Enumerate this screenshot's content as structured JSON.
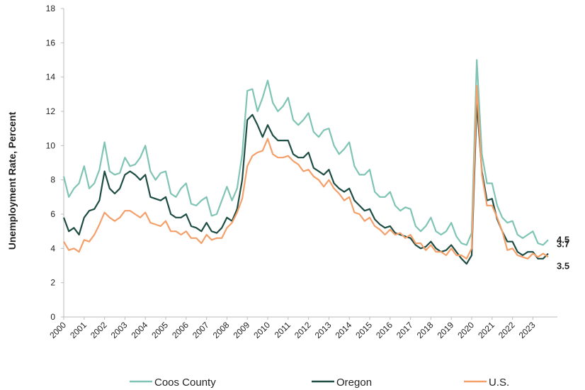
{
  "chart_data": {
    "type": "line",
    "ylabel": "Unemployment Rate, Percent",
    "x": [
      2000,
      2000.25,
      2000.5,
      2000.75,
      2001,
      2001.25,
      2001.5,
      2001.75,
      2002,
      2002.25,
      2002.5,
      2002.75,
      2003,
      2003.25,
      2003.5,
      2003.75,
      2004,
      2004.25,
      2004.5,
      2004.75,
      2005,
      2005.25,
      2005.5,
      2005.75,
      2006,
      2006.25,
      2006.5,
      2006.75,
      2007,
      2007.25,
      2007.5,
      2007.75,
      2008,
      2008.25,
      2008.5,
      2008.75,
      2009,
      2009.25,
      2009.5,
      2009.75,
      2010,
      2010.25,
      2010.5,
      2010.75,
      2011,
      2011.25,
      2011.5,
      2011.75,
      2012,
      2012.25,
      2012.5,
      2012.75,
      2013,
      2013.25,
      2013.5,
      2013.75,
      2014,
      2014.25,
      2014.5,
      2014.75,
      2015,
      2015.25,
      2015.5,
      2015.75,
      2016,
      2016.25,
      2016.5,
      2016.75,
      2017,
      2017.25,
      2017.5,
      2017.75,
      2018,
      2018.25,
      2018.5,
      2018.75,
      2019,
      2019.25,
      2019.5,
      2019.75,
      2020,
      2020.25,
      2020.5,
      2020.75,
      2021,
      2021.25,
      2021.5,
      2021.75,
      2022,
      2022.25,
      2022.5,
      2022.75,
      2023,
      2023.25,
      2023.5,
      2023.75
    ],
    "series": [
      {
        "name": "Coos County",
        "color": "#7fc4b4",
        "values": [
          8.2,
          7.0,
          7.5,
          7.8,
          8.8,
          7.5,
          7.8,
          8.6,
          10.2,
          8.5,
          8.3,
          8.4,
          9.3,
          8.8,
          8.9,
          9.3,
          10.0,
          8.5,
          8.0,
          8.4,
          8.5,
          7.2,
          7.0,
          7.5,
          7.8,
          6.6,
          6.5,
          6.8,
          7.0,
          5.9,
          6.0,
          6.8,
          7.6,
          6.8,
          7.5,
          9.5,
          13.2,
          13.3,
          12.0,
          12.8,
          13.8,
          12.5,
          12.0,
          12.3,
          12.8,
          11.5,
          11.2,
          11.5,
          11.9,
          10.8,
          10.5,
          10.9,
          11.0,
          10.0,
          9.5,
          9.8,
          10.2,
          8.8,
          8.3,
          8.3,
          8.6,
          7.3,
          7.0,
          7.0,
          7.3,
          6.5,
          6.2,
          6.4,
          6.3,
          5.3,
          5.0,
          5.3,
          5.8,
          5.0,
          4.8,
          5.0,
          5.5,
          4.7,
          4.3,
          4.2,
          4.9,
          15.0,
          9.5,
          7.8,
          7.8,
          6.5,
          5.8,
          5.5,
          5.6,
          4.8,
          4.6,
          4.8,
          5.0,
          4.3,
          4.2,
          4.5
        ]
      },
      {
        "name": "Oregon",
        "color": "#1e4d44",
        "values": [
          5.8,
          5.0,
          5.2,
          4.8,
          5.8,
          6.2,
          6.3,
          6.8,
          8.5,
          7.5,
          7.2,
          7.5,
          8.3,
          8.5,
          8.3,
          8.0,
          8.3,
          7.0,
          6.9,
          6.8,
          7.0,
          6.0,
          5.8,
          5.8,
          6.0,
          5.3,
          5.2,
          5.0,
          5.5,
          5.0,
          4.9,
          5.2,
          5.8,
          5.6,
          6.3,
          8.0,
          11.5,
          11.8,
          11.2,
          10.5,
          11.2,
          10.6,
          10.3,
          10.3,
          10.3,
          9.5,
          9.3,
          9.3,
          9.6,
          8.7,
          8.5,
          8.3,
          8.6,
          7.8,
          7.5,
          7.3,
          7.5,
          6.8,
          6.5,
          6.2,
          6.3,
          5.7,
          5.4,
          5.2,
          5.3,
          4.9,
          4.8,
          4.7,
          4.6,
          4.2,
          4.0,
          4.1,
          4.4,
          4.0,
          3.8,
          3.9,
          4.2,
          3.8,
          3.4,
          3.1,
          3.6,
          12.5,
          8.5,
          6.8,
          6.9,
          5.7,
          5.0,
          4.4,
          4.4,
          3.8,
          3.6,
          3.8,
          3.8,
          3.4,
          3.4,
          3.7
        ]
      },
      {
        "name": "U.S.",
        "color": "#f4a06b",
        "values": [
          4.4,
          3.9,
          4.0,
          3.8,
          4.5,
          4.4,
          4.8,
          5.4,
          6.1,
          5.8,
          5.6,
          5.8,
          6.2,
          6.2,
          6.0,
          5.8,
          6.1,
          5.5,
          5.4,
          5.3,
          5.6,
          5.0,
          5.0,
          4.8,
          5.0,
          4.6,
          4.6,
          4.3,
          4.8,
          4.5,
          4.6,
          4.6,
          5.2,
          5.5,
          6.1,
          6.9,
          8.8,
          9.4,
          9.6,
          9.7,
          10.4,
          9.5,
          9.3,
          9.3,
          9.4,
          9.1,
          8.9,
          8.5,
          8.6,
          8.2,
          8.0,
          7.6,
          8.0,
          7.5,
          7.2,
          6.8,
          7.0,
          6.1,
          6.0,
          5.6,
          5.8,
          5.3,
          5.1,
          4.8,
          5.1,
          4.8,
          4.9,
          4.6,
          4.8,
          4.3,
          4.3,
          3.9,
          4.2,
          3.8,
          3.8,
          3.6,
          4.0,
          3.6,
          3.6,
          3.4,
          4.0,
          13.5,
          8.3,
          6.5,
          6.5,
          5.8,
          5.0,
          3.9,
          4.0,
          3.6,
          3.5,
          3.4,
          3.7,
          3.5,
          3.7,
          3.5
        ]
      }
    ],
    "xlim": [
      2000,
      2024.2
    ],
    "xticks": [
      2000,
      2001,
      2002,
      2003,
      2004,
      2005,
      2006,
      2007,
      2008,
      2009,
      2010,
      2011,
      2012,
      2013,
      2014,
      2015,
      2016,
      2017,
      2018,
      2019,
      2020,
      2021,
      2022,
      2023
    ],
    "ylim": [
      0,
      18
    ],
    "yticks": [
      0,
      2,
      4,
      6,
      8,
      10,
      12,
      14,
      16,
      18
    ]
  }
}
